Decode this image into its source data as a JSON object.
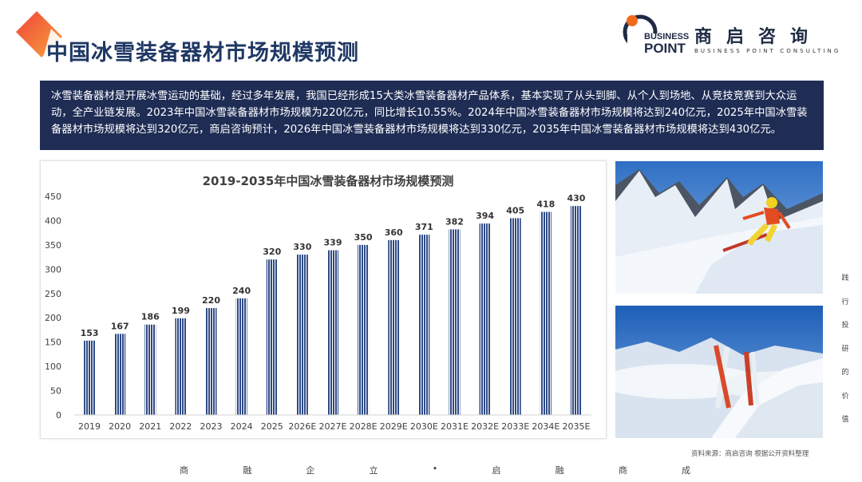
{
  "page": {
    "title": "中国冰雪装备器材市场规模预测",
    "intro": "冰雪装备器材是开展冰雪运动的基础，经过多年发展，我国已经形成15大类冰雪装备器材产品体系，基本实现了从头到脚、从个人到场地、从竞技竞赛到大众运动，全产业链发展。2023年中国冰雪装备器材市场规模为220亿元，同比增长10.55%。2024年中国冰雪装备器材市场规模将达到240亿元，2025年中国冰雪装备器材市场规模将达到320亿元，商启咨询预计，2026年中国冰雪装备器材市场规模将达到330亿元，2035年中国冰雪装备器材市场规模将达到430亿元。",
    "source": "资料来源：商启咨询 根据公开资料整理",
    "side_text": [
      "践",
      "行",
      "投",
      "研",
      "的",
      "价",
      "值"
    ],
    "footer": [
      "商",
      "融",
      "企",
      "立",
      "•",
      "启",
      "融",
      "商",
      "成"
    ]
  },
  "brand": {
    "logo_line1": "BUSINESS",
    "logo_line2": "POINT",
    "name_cn": "商启咨询",
    "name_en": "BUSINESS POINT CONSULTING",
    "accent": "#f26b1d",
    "navy": "#1f2a44"
  },
  "colors": {
    "title": "#1f3864",
    "panel": "#1f2d55",
    "bar": "#2e4a86"
  },
  "chart_data": {
    "type": "bar",
    "title": "2019-2035年中国冰雪装备器材市场规模预测",
    "categories": [
      "2019",
      "2020",
      "2021",
      "2022",
      "2023",
      "2024",
      "2025",
      "2026E",
      "2027E",
      "2028E",
      "2029E",
      "2030E",
      "2031E",
      "2032E",
      "2033E",
      "2034E",
      "2035E"
    ],
    "values": [
      153,
      167,
      186,
      199,
      220,
      240,
      320,
      330,
      339,
      350,
      360,
      371,
      382,
      394,
      405,
      418,
      430
    ],
    "ylim": [
      0,
      450
    ],
    "yticks": [
      0,
      50,
      100,
      150,
      200,
      250,
      300,
      350,
      400,
      450
    ],
    "xlabel": "",
    "ylabel": "",
    "grid": false,
    "data_labels": true
  }
}
